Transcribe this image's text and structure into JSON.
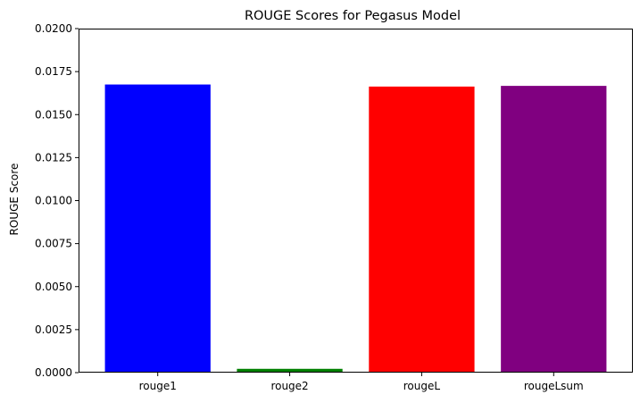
{
  "chart_data": {
    "type": "bar",
    "title": "ROUGE Scores for Pegasus Model",
    "xlabel": "",
    "ylabel": "ROUGE Score",
    "categories": [
      "rouge1",
      "rouge2",
      "rougeL",
      "rougeLsum"
    ],
    "values": [
      0.01675,
      0.00022,
      0.01663,
      0.01667
    ],
    "colors": [
      "#0000ff",
      "#008000",
      "#ff0000",
      "#800080"
    ],
    "ylim": [
      0,
      0.02
    ],
    "yticks": [
      0.0,
      0.0025,
      0.005,
      0.0075,
      0.01,
      0.0125,
      0.015,
      0.0175,
      0.02
    ],
    "ytick_labels": [
      "0.0000",
      "0.0025",
      "0.0050",
      "0.0075",
      "0.0100",
      "0.0125",
      "0.0150",
      "0.0175",
      "0.0200"
    ],
    "grid": false,
    "legend": "none"
  }
}
